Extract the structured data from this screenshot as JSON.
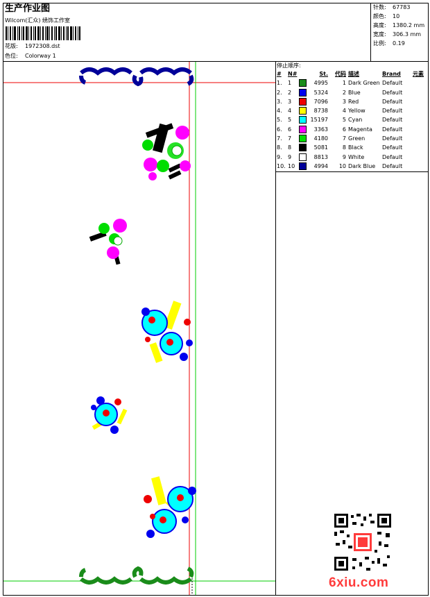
{
  "header": {
    "title": "生产作业图",
    "company": "Wilcom(汇众) 绣饰工作室",
    "design_label": "花版:",
    "design_value": "1972308.dst",
    "colorway_label": "色位:",
    "colorway_value": "Colorway 1"
  },
  "stats": [
    {
      "label": "针数:",
      "value": "67783"
    },
    {
      "label": "颜色:",
      "value": "10"
    },
    {
      "label": "高度:",
      "value": "1380.2 mm"
    },
    {
      "label": "宽度:",
      "value": "306.3 mm"
    },
    {
      "label": "比例:",
      "value": "0.19"
    }
  ],
  "stop_sequence": {
    "title": "停止顺序:",
    "columns": [
      "#",
      "N#",
      "St.",
      "代码",
      "描述",
      "Brand",
      "元素"
    ],
    "rows": [
      {
        "idx": "1.",
        "n": "1",
        "color": "#1a8c1a",
        "st": "4995",
        "code": "1",
        "desc": "Dark Green",
        "brand": "Default"
      },
      {
        "idx": "2.",
        "n": "2",
        "color": "#0000ee",
        "st": "5324",
        "code": "2",
        "desc": "Blue",
        "brand": "Default"
      },
      {
        "idx": "3.",
        "n": "3",
        "color": "#ee0000",
        "st": "7096",
        "code": "3",
        "desc": "Red",
        "brand": "Default"
      },
      {
        "idx": "4.",
        "n": "4",
        "color": "#ffff00",
        "st": "8738",
        "code": "4",
        "desc": "Yellow",
        "brand": "Default"
      },
      {
        "idx": "5.",
        "n": "5",
        "color": "#00ffff",
        "st": "15197",
        "code": "5",
        "desc": "Cyan",
        "brand": "Default"
      },
      {
        "idx": "6.",
        "n": "6",
        "color": "#ff00ff",
        "st": "3363",
        "code": "6",
        "desc": "Magenta",
        "brand": "Default"
      },
      {
        "idx": "7.",
        "n": "7",
        "color": "#00dd00",
        "st": "4180",
        "code": "7",
        "desc": "Green",
        "brand": "Default"
      },
      {
        "idx": "8.",
        "n": "8",
        "color": "#000000",
        "st": "5081",
        "code": "8",
        "desc": "Black",
        "brand": "Default"
      },
      {
        "idx": "9.",
        "n": "9",
        "color": "#ffffff",
        "st": "8813",
        "code": "9",
        "desc": "White",
        "brand": "Default"
      },
      {
        "idx": "10.",
        "n": "10",
        "color": "#000099",
        "st": "4994",
        "code": "10",
        "desc": "Dark Blue",
        "brand": "Default"
      }
    ]
  },
  "watermark": "6xiu.com",
  "colors": {
    "guide_red": "#ee0000",
    "guide_green": "#00cc00",
    "watermark": "#ff3b3b"
  }
}
